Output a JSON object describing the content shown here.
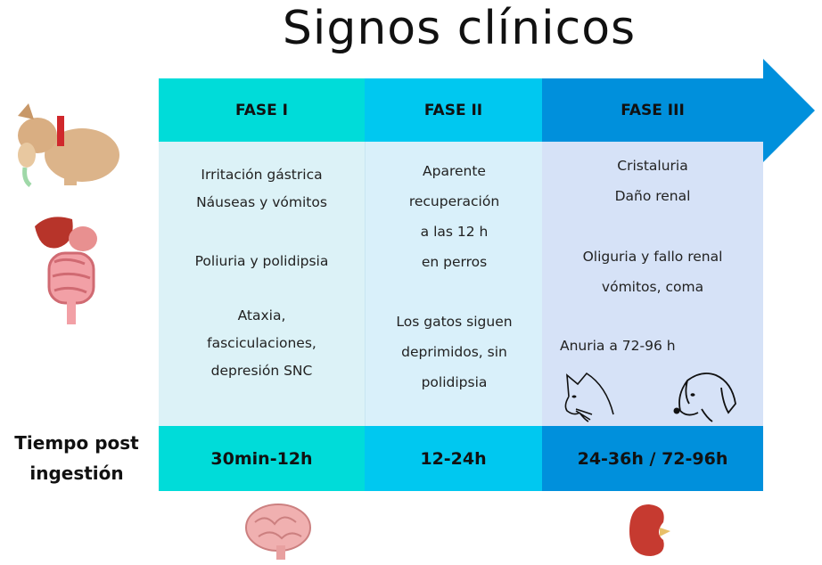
{
  "title": "Signos clínicos",
  "colors": {
    "fase1": "#00dcd9",
    "fase2": "#00c8f0",
    "fase3": "#0090dc",
    "body1": "#dcf2f7",
    "body2": "#d9f0fa",
    "body3": "#d6e2f7"
  },
  "phases": [
    {
      "label": "FASE I",
      "time": "30min-12h",
      "signs": [
        "Irritación gástrica",
        "Náuseas y vómitos",
        "Poliuria y polidipsia",
        "Ataxia,",
        "fasciculaciones,",
        "depresión SNC"
      ]
    },
    {
      "label": "FASE II",
      "time": "12-24h",
      "signs": [
        "Aparente",
        "recuperación",
        "a las 12 h",
        "en perros",
        "Los gatos siguen",
        "deprimidos, sin",
        "polidipsia"
      ]
    },
    {
      "label": "FASE III",
      "time": "24-36h / 72-96h",
      "signs": [
        "Cristaluria",
        "Daño renal",
        "Oliguria y fallo renal",
        "vómitos, coma",
        "Anuria a 72-96 h"
      ]
    }
  ],
  "time_label": [
    "Tiempo post",
    "ingestión"
  ],
  "icons": [
    "vomiting-dog-icon",
    "digestive-organs-icon",
    "brain-icon",
    "kidney-icon",
    "cat-head-icon",
    "dog-head-icon",
    "arrow-icon"
  ]
}
